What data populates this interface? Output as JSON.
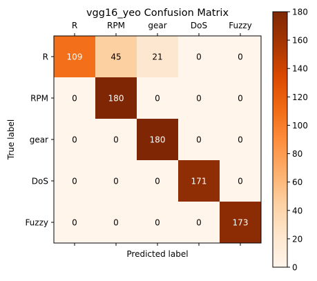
{
  "chart_data": {
    "type": "heatmap",
    "title": "vgg16_yeo Confusion Matrix",
    "xlabel": "Predicted label",
    "ylabel": "True label",
    "x_categories": [
      "R",
      "RPM",
      "gear",
      "DoS",
      "Fuzzy"
    ],
    "y_categories": [
      "R",
      "RPM",
      "gear",
      "DoS",
      "Fuzzy"
    ],
    "matrix": [
      [
        109,
        45,
        21,
        0,
        0
      ],
      [
        0,
        180,
        0,
        0,
        0
      ],
      [
        0,
        0,
        180,
        0,
        0
      ],
      [
        0,
        0,
        0,
        171,
        0
      ],
      [
        0,
        0,
        0,
        0,
        173
      ]
    ],
    "colorbar": {
      "min": 0,
      "max": 180,
      "ticks": [
        0,
        20,
        40,
        60,
        80,
        100,
        120,
        140,
        160,
        180
      ],
      "colormap": "Oranges"
    },
    "text_color_threshold": 90,
    "colors": {
      "low": "#fff5eb",
      "high": "#7f2704",
      "text_dark": "#000000",
      "text_light": "#ffffff"
    }
  }
}
